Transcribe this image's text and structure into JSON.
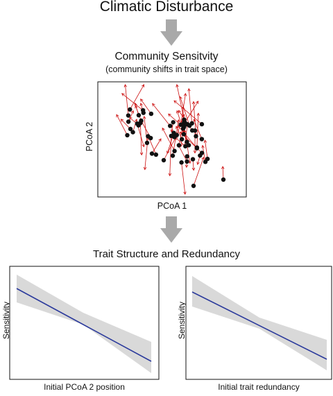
{
  "heading": "Climatic Disturbance",
  "community": {
    "title": "Community Sensitvity",
    "subtitle": "(community shifts in trait space)",
    "xlabel": "PCoA 1",
    "ylabel": "PCoA 2"
  },
  "trait_section": {
    "title": "Trait Structure and Redundancy"
  },
  "panels": [
    {
      "xlabel": "Initial PCoA 2 position",
      "ylabel": "Sensitivity"
    },
    {
      "xlabel": "Initial trait redundancy",
      "ylabel": "Sensitivity"
    }
  ],
  "colors": {
    "arrow": "#cc1010",
    "point": "#111111",
    "band": "#d9d9d9",
    "fit": "#2b3a9c",
    "flow_arrow": "#a9a9a9"
  }
}
